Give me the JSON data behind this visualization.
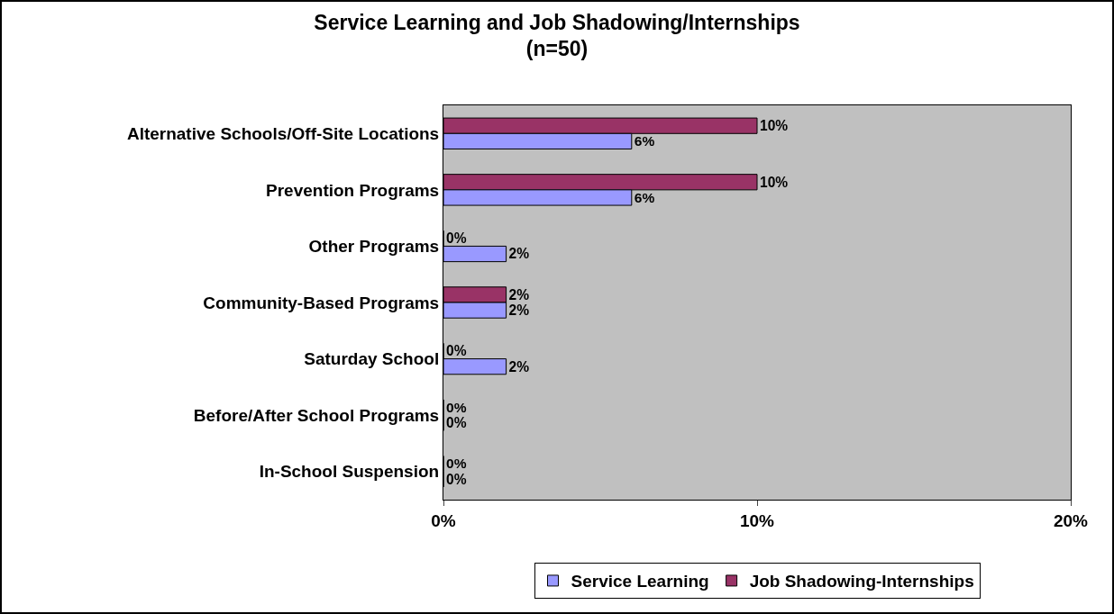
{
  "chart_data": {
    "type": "bar",
    "orientation": "horizontal",
    "title": "Service Learning and Job Shadowing/Internships",
    "subtitle": "(n=50)",
    "categories": [
      "Alternative Schools/Off-Site Locations",
      "Prevention Programs",
      "Other Programs",
      "Community-Based Programs",
      "Saturday School",
      "Before/After School Programs",
      "In-School Suspension"
    ],
    "series": [
      {
        "name": "Service Learning",
        "color": "#9999ff",
        "values": [
          6,
          6,
          2,
          2,
          2,
          0,
          0
        ],
        "value_labels": [
          "6%",
          "6%",
          "2%",
          "2%",
          "2%",
          "0%",
          "0%"
        ]
      },
      {
        "name": "Job Shadowing-Internships",
        "color": "#993366",
        "values": [
          10,
          10,
          0,
          2,
          0,
          0,
          0
        ],
        "value_labels": [
          "10%",
          "10%",
          "0%",
          "2%",
          "0%",
          "0%",
          "0%"
        ]
      }
    ],
    "xlim": [
      0,
      20
    ],
    "xticks": [
      {
        "value": 0,
        "label": "0%"
      },
      {
        "value": 10,
        "label": "10%"
      },
      {
        "value": 20,
        "label": "20%"
      }
    ],
    "grid": false,
    "legend": "bottom"
  }
}
